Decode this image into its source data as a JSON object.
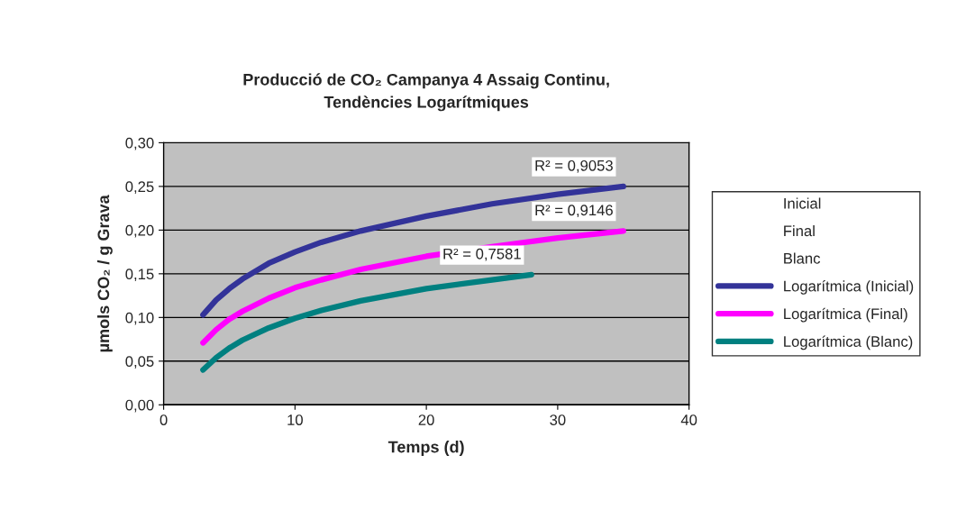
{
  "chart_data": {
    "type": "line",
    "title": "Producció de CO₂ Campanya 4 Assaig Continu,\nTendències Logarítmiques",
    "xlabel": "Temps (d)",
    "ylabel": "µmols CO₂ / g Grava",
    "xlim": [
      0,
      40
    ],
    "xticks": [
      0,
      10,
      20,
      30,
      40
    ],
    "ylim": [
      0,
      0.3
    ],
    "yticks": [
      {
        "value": 0,
        "label": "0,00"
      },
      {
        "value": 0.05,
        "label": "0,05"
      },
      {
        "value": 0.1,
        "label": "0,10"
      },
      {
        "value": 0.15,
        "label": "0,15"
      },
      {
        "value": 0.2,
        "label": "0,20"
      },
      {
        "value": 0.25,
        "label": "0,25"
      },
      {
        "value": 0.3,
        "label": "0,30"
      }
    ],
    "grid": "y",
    "legend": "right",
    "marker": "none",
    "line_style": "solid",
    "series": [
      {
        "name": "Logarítmica (Inicial)",
        "color": "#333399",
        "x": [
          3,
          4,
          5,
          6,
          8,
          10,
          12,
          15,
          20,
          25,
          30,
          35
        ],
        "values": [
          0.103,
          0.12,
          0.133,
          0.144,
          0.162,
          0.175,
          0.186,
          0.199,
          0.216,
          0.23,
          0.241,
          0.25
        ]
      },
      {
        "name": "Logarítmica (Final)",
        "color": "#ff00ff",
        "x": [
          3,
          4,
          5,
          6,
          8,
          10,
          12,
          15,
          20,
          25,
          30,
          35
        ],
        "values": [
          0.071,
          0.086,
          0.098,
          0.107,
          0.122,
          0.134,
          0.143,
          0.155,
          0.17,
          0.181,
          0.191,
          0.199
        ]
      },
      {
        "name": "Logarítmica (Blanc)",
        "color": "#008080",
        "x": [
          3,
          4,
          5,
          6,
          8,
          10,
          12,
          15,
          20,
          25,
          28
        ],
        "values": [
          0.04,
          0.054,
          0.065,
          0.074,
          0.088,
          0.099,
          0.108,
          0.119,
          0.133,
          0.143,
          0.149
        ]
      }
    ],
    "annotations": [
      "R² = 0,9053",
      "R² = 0,9146",
      "R² = 0,7581",
      "Inicial",
      "Final",
      "Blanc"
    ]
  }
}
